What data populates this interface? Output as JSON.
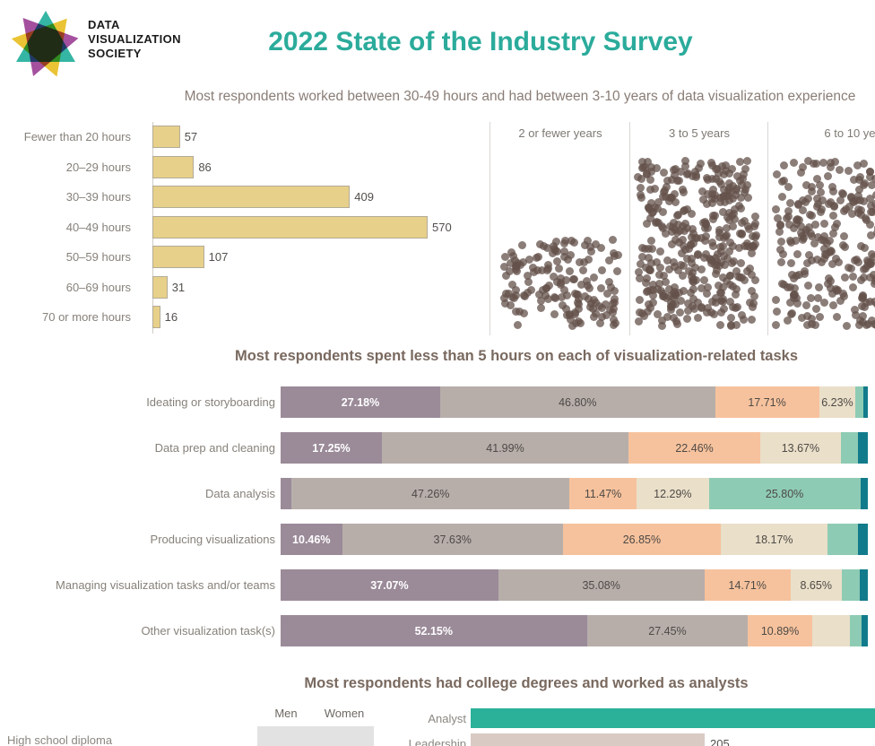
{
  "header": {
    "logo_lines": [
      "DATA",
      "VISUALIZATION",
      "SOCIETY"
    ],
    "title": "2022 State of the Industry Survey"
  },
  "colors": {
    "title_accent": "#2bab9b",
    "hours_bar": "#e7d089",
    "dot": "#64524b",
    "stacked_segments": [
      "#9b8b99",
      "#b7aeaa",
      "#f6c29d",
      "#eadfc9",
      "#8ecbb4",
      "#117b8c"
    ],
    "analyst_bar": "#2bb09a",
    "leadership_bar": "#d9cac4"
  },
  "chart_data": [
    {
      "type": "bar",
      "title": "Most respondents worked between 30-49 hours and had between 3-10 years of data visualization experience",
      "categories": [
        "Fewer than 20 hours",
        "20–29 hours",
        "30–39 hours",
        "40–49 hours",
        "50–59 hours",
        "60–69 hours",
        "70 or more hours"
      ],
      "values": [
        57,
        86,
        409,
        570,
        107,
        31,
        16
      ],
      "orientation": "horizontal",
      "value_labels_shown": true
    },
    {
      "type": "scatter",
      "subtype": "unit-dot-panels",
      "panels": [
        {
          "label": "2 or fewer years",
          "approx_dot_count": 160,
          "fill": "bottom-half"
        },
        {
          "label": "3 to 5 years",
          "approx_dot_count": 400,
          "fill": "full"
        },
        {
          "label": "6 to 10 years",
          "approx_dot_count": 330,
          "fill": "full",
          "clipped_right": true
        }
      ]
    },
    {
      "type": "stacked_bar",
      "title": "Most respondents spent less than 5 hours on each of visualization-related tasks",
      "categories": [
        "Ideating or storyboarding",
        "Data prep and cleaning",
        "Data analysis",
        "Producing visualizations",
        "Managing visualization tasks and/or teams",
        "Other visualization task(s)"
      ],
      "rows": [
        {
          "values": [
            27.18,
            46.8,
            17.71,
            6.23,
            1.3,
            0.78
          ],
          "labels": [
            "27.18%",
            "46.80%",
            "17.71%",
            "6.23%",
            "",
            ""
          ]
        },
        {
          "values": [
            17.25,
            41.99,
            22.46,
            13.67,
            2.96,
            1.67
          ],
          "labels": [
            "17.25%",
            "41.99%",
            "22.46%",
            "13.67%",
            "",
            ""
          ]
        },
        {
          "values": [
            1.9,
            47.26,
            11.47,
            12.29,
            25.8,
            1.28
          ],
          "labels": [
            "",
            "47.26%",
            "11.47%",
            "12.29%",
            "25.80%",
            ""
          ]
        },
        {
          "values": [
            10.46,
            37.63,
            26.85,
            18.17,
            5.19,
            1.7
          ],
          "labels": [
            "10.46%",
            "37.63%",
            "26.85%",
            "18.17%",
            "",
            ""
          ]
        },
        {
          "values": [
            37.07,
            35.08,
            14.71,
            8.65,
            3.09,
            1.4
          ],
          "labels": [
            "37.07%",
            "35.08%",
            "14.71%",
            "8.65%",
            "",
            ""
          ]
        },
        {
          "values": [
            52.15,
            27.45,
            10.89,
            6.41,
            2.0,
            1.1
          ],
          "labels": [
            "52.15%",
            "27.45%",
            "10.89%",
            "",
            "",
            ""
          ]
        }
      ]
    },
    {
      "type": "bar",
      "title": "Most respondents had college degrees and worked as analysts",
      "gender_columns": [
        "Men",
        "Women"
      ],
      "education_rows": [
        "High school diploma"
      ],
      "role_categories": [
        "Analyst",
        "Leadership"
      ],
      "leadership_value": "205"
    }
  ]
}
